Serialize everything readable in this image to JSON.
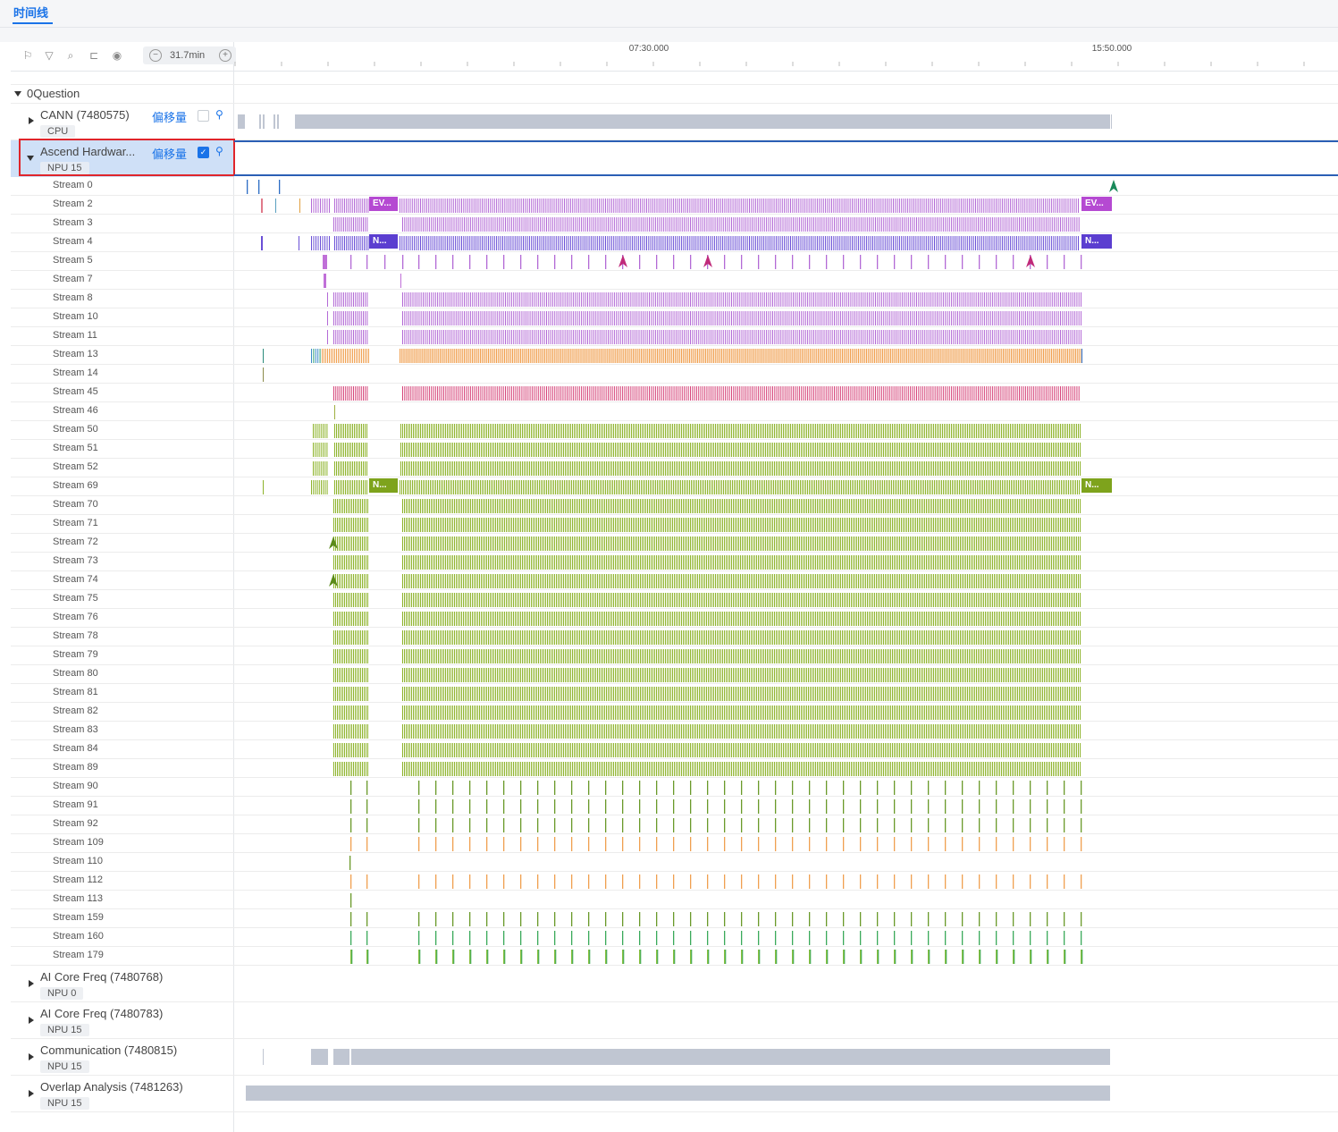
{
  "header": {
    "tab_label": "时间线"
  },
  "toolbar": {
    "zoom_value": "31.7min",
    "icons": [
      "flag-icon",
      "filter-icon",
      "search-icon",
      "link-icon",
      "target-icon"
    ]
  },
  "ruler": {
    "labels": [
      "07:30.000",
      "15:50.000"
    ]
  },
  "root_group": {
    "label": "0Question"
  },
  "groups": {
    "cann": {
      "title": "CANN (7480575)",
      "badge": "CPU",
      "offset_label": "偏移量"
    },
    "ascend": {
      "title": "Ascend Hardwar...",
      "badge": "NPU 15",
      "offset_label": "偏移量"
    },
    "ai_core_0": {
      "title": "AI Core Freq (7480768)",
      "badge": "NPU 0"
    },
    "ai_core_15": {
      "title": "AI Core Freq (7480783)",
      "badge": "NPU 15"
    },
    "comm": {
      "title": "Communication (7480815)",
      "badge": "NPU 15"
    },
    "overlap": {
      "title": "Overlap Analysis (7481263)",
      "badge": "NPU 15"
    }
  },
  "streams": [
    "Stream 0",
    "Stream 2",
    "Stream 3",
    "Stream 4",
    "Stream 5",
    "Stream 7",
    "Stream 8",
    "Stream 10",
    "Stream 11",
    "Stream 13",
    "Stream 14",
    "Stream 45",
    "Stream 46",
    "Stream 50",
    "Stream 51",
    "Stream 52",
    "Stream 69",
    "Stream 70",
    "Stream 71",
    "Stream 72",
    "Stream 73",
    "Stream 74",
    "Stream 75",
    "Stream 76",
    "Stream 78",
    "Stream 79",
    "Stream 80",
    "Stream 81",
    "Stream 82",
    "Stream 83",
    "Stream 84",
    "Stream 89",
    "Stream 90",
    "Stream 91",
    "Stream 92",
    "Stream 109",
    "Stream 110",
    "Stream 112",
    "Stream 113",
    "Stream 159",
    "Stream 160",
    "Stream 179"
  ],
  "slice_labels": {
    "ev": "EV...",
    "n": "N..."
  },
  "colors": {
    "purple": "#b36ad6",
    "violet": "#6a4fd6",
    "orange": "#f0a050",
    "pink": "#d6457a",
    "green": "#8db32a",
    "gray": "#c0c6d2",
    "blue": "#1a73e8"
  }
}
